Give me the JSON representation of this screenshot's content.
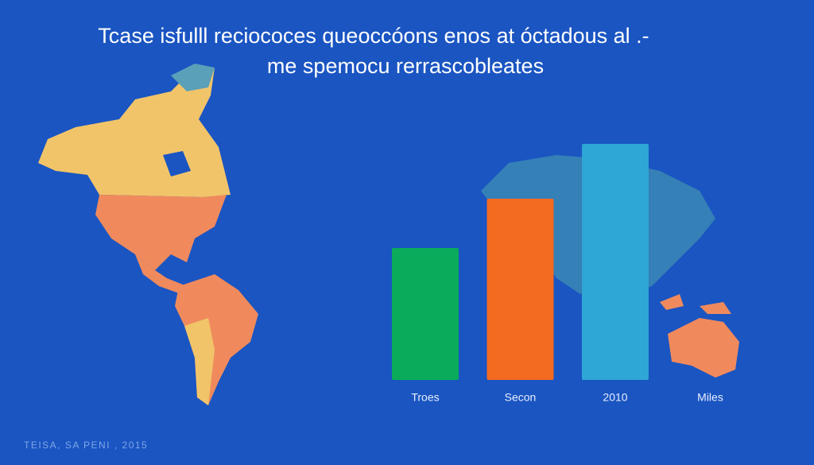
{
  "chart_data": {
    "type": "bar",
    "title": [
      "Tcase isfulll reciococes queoccóons enos at óctadous al .-",
      "me spemocu rerrascobleates"
    ],
    "categories": [
      "Troes",
      "Secon",
      "2010",
      "Miles"
    ],
    "values": [
      166,
      228,
      297,
      null
    ],
    "colors": [
      "#0aab5a",
      "#f36a21",
      "#2ea6d6",
      null
    ],
    "ylim": [
      0,
      300
    ],
    "footer": "TEISA, SA PENI , 2015"
  }
}
